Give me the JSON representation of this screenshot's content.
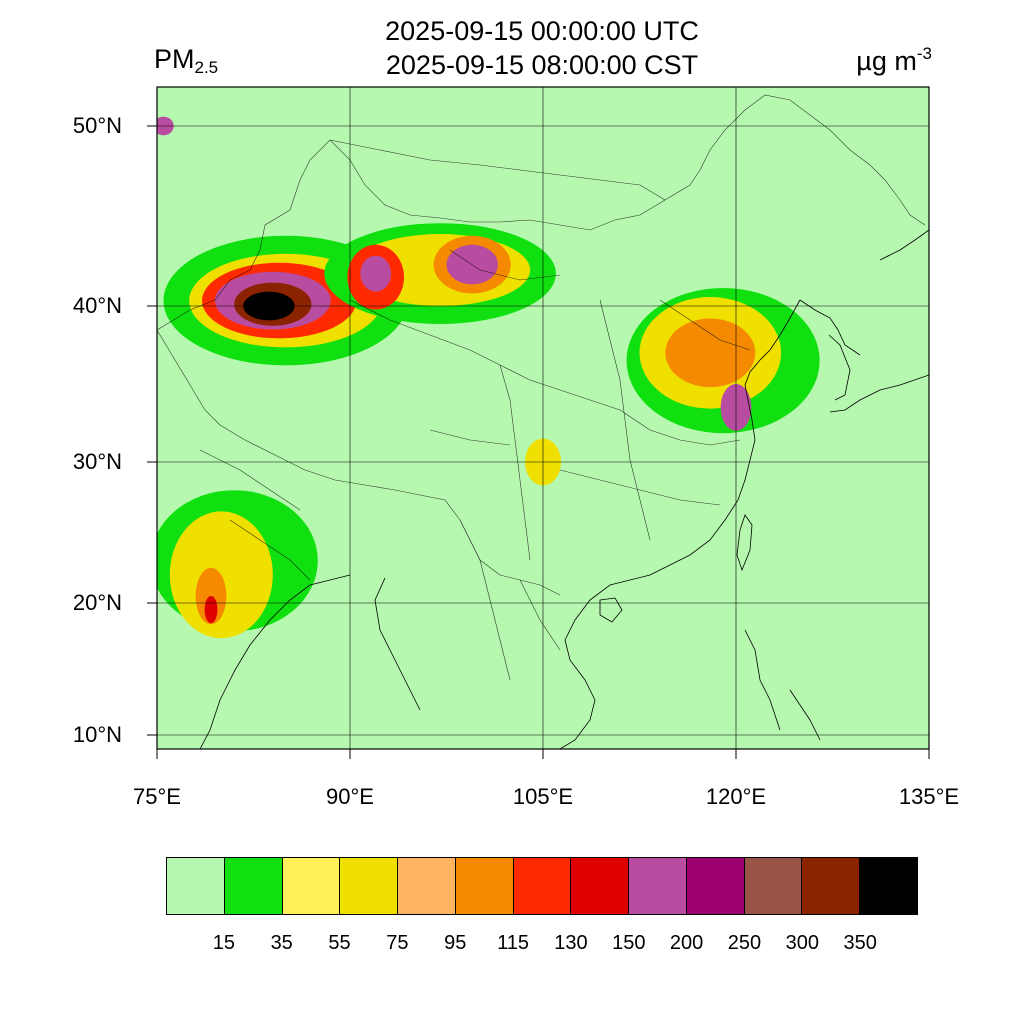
{
  "title": {
    "line1": "2025-09-15 00:00:00 UTC",
    "line2": "2025-09-15 08:00:00 CST"
  },
  "species": {
    "main": "PM",
    "sub": "2.5"
  },
  "unit": {
    "main": "µg m",
    "sup": "-3"
  },
  "map": {
    "background_color": "#b6f8b0",
    "lon_range": [
      75,
      135
    ],
    "lat_range": [
      9,
      52
    ],
    "lat_labels": [
      {
        "lat": 50,
        "text": "50°N"
      },
      {
        "lat": 40,
        "text": "40°N"
      },
      {
        "lat": 30,
        "text": "30°N"
      },
      {
        "lat": 20,
        "text": "20°N"
      },
      {
        "lat": 10,
        "text": "10°N"
      }
    ],
    "lon_labels": [
      {
        "lon": 75,
        "text": "75°E"
      },
      {
        "lon": 90,
        "text": "90°E"
      },
      {
        "lon": 105,
        "text": "105°E"
      },
      {
        "lon": 120,
        "text": "120°E"
      },
      {
        "lon": 135,
        "text": "135°E"
      }
    ],
    "gridlines": true,
    "pollution_blobs": [
      {
        "lon": 85.0,
        "lat": 40.3,
        "rlon": 9.5,
        "rlat": 3.6,
        "level": 1
      },
      {
        "lon": 85.0,
        "lat": 40.3,
        "rlon": 7.5,
        "rlat": 2.6,
        "level": 3
      },
      {
        "lon": 84.5,
        "lat": 40.3,
        "rlon": 6.0,
        "rlat": 2.1,
        "level": 6
      },
      {
        "lon": 84.0,
        "lat": 40.3,
        "rlon": 4.5,
        "rlat": 1.6,
        "level": 8
      },
      {
        "lon": 84.0,
        "lat": 40.1,
        "rlon": 3.0,
        "rlat": 1.2,
        "level": 11
      },
      {
        "lon": 83.7,
        "lat": 40.0,
        "rlon": 2.0,
        "rlat": 0.8,
        "level": 12
      },
      {
        "lon": 97.0,
        "lat": 41.8,
        "rlon": 9.0,
        "rlat": 2.8,
        "level": 1
      },
      {
        "lon": 97.0,
        "lat": 42.0,
        "rlon": 7.0,
        "rlat": 2.0,
        "level": 3
      },
      {
        "lon": 92.0,
        "lat": 41.6,
        "rlon": 2.2,
        "rlat": 1.8,
        "level": 6
      },
      {
        "lon": 92.0,
        "lat": 41.8,
        "rlon": 1.2,
        "rlat": 1.0,
        "level": 8
      },
      {
        "lon": 99.5,
        "lat": 42.3,
        "rlon": 3.0,
        "rlat": 1.6,
        "level": 5
      },
      {
        "lon": 99.5,
        "lat": 42.3,
        "rlon": 2.0,
        "rlat": 1.1,
        "level": 8
      },
      {
        "lon": 119.0,
        "lat": 36.5,
        "rlon": 7.5,
        "rlat": 4.5,
        "level": 1
      },
      {
        "lon": 118.0,
        "lat": 37.0,
        "rlon": 5.5,
        "rlat": 3.5,
        "level": 3
      },
      {
        "lon": 118.0,
        "lat": 37.0,
        "rlon": 3.5,
        "rlat": 2.2,
        "level": 5
      },
      {
        "lon": 120.0,
        "lat": 33.5,
        "rlon": 1.2,
        "rlat": 1.5,
        "level": 8
      },
      {
        "lon": 81.0,
        "lat": 23.0,
        "rlon": 6.5,
        "rlat": 5.0,
        "level": 1
      },
      {
        "lon": 80.0,
        "lat": 22.0,
        "rlon": 4.0,
        "rlat": 4.5,
        "level": 3
      },
      {
        "lon": 79.2,
        "lat": 20.5,
        "rlon": 1.2,
        "rlat": 2.0,
        "level": 5
      },
      {
        "lon": 79.2,
        "lat": 19.5,
        "rlon": 0.5,
        "rlat": 1.0,
        "level": 7
      },
      {
        "lon": 105.0,
        "lat": 30.0,
        "rlon": 1.4,
        "rlat": 1.5,
        "level": 3
      },
      {
        "lon": 75.5,
        "lat": 50.0,
        "rlon": 0.8,
        "rlat": 0.5,
        "level": 8
      }
    ]
  },
  "colorbar": {
    "colors": [
      "#b6f8b0",
      "#10e010",
      "#fff05a",
      "#f0e000",
      "#ffb460",
      "#f58a00",
      "#ff2a00",
      "#e00000",
      "#b84ca0",
      "#9c006e",
      "#985444",
      "#8c2300",
      "#000000"
    ],
    "labels": [
      "15",
      "35",
      "55",
      "75",
      "95",
      "115",
      "130",
      "150",
      "200",
      "250",
      "300",
      "350"
    ]
  }
}
